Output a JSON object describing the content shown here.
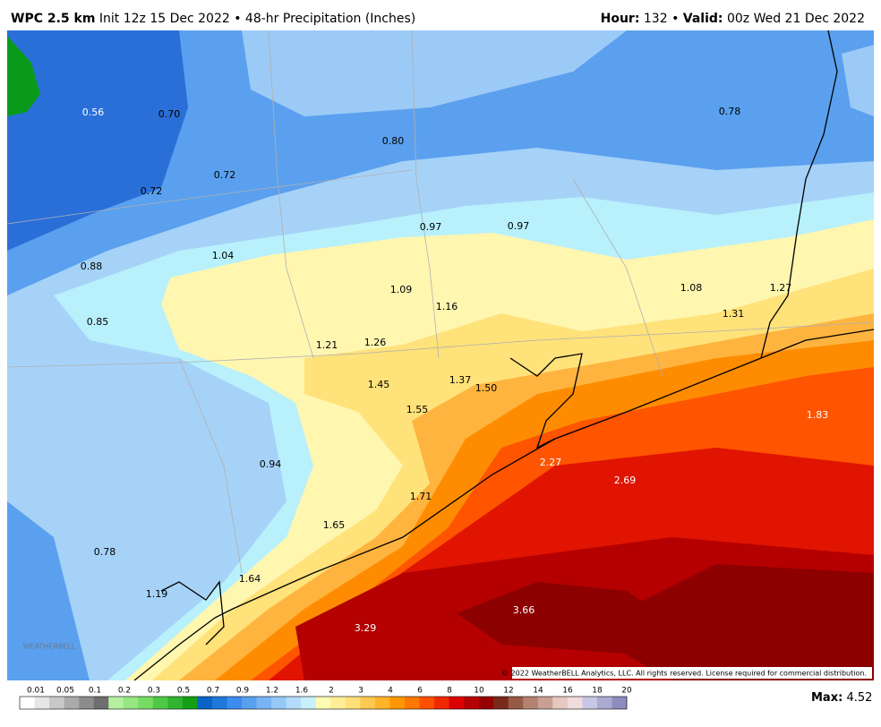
{
  "header": {
    "model": "WPC 2.5 km",
    "description": "Init 12z 15 Dec 2022 • 48-hr Precipitation (Inches)",
    "hour_label": "Hour:",
    "hour": "132",
    "separator": "•",
    "valid_label": "Valid:",
    "valid": "00z Wed 21 Dec 2022"
  },
  "labels": [
    "0.56",
    "0.70",
    "0.80",
    "0.78",
    "0.72",
    "0.72",
    "0.97",
    "0.97",
    "1.04",
    "0.88",
    "1.09",
    "1.16",
    "1.08",
    "1.27",
    "1.31",
    "0.85",
    "1.21",
    "1.26",
    "1.45",
    "1.37",
    "1.50",
    "1.55",
    "1.83",
    "2.27",
    "2.69",
    "0.94",
    "1.71",
    "1.65",
    "0.78",
    "1.64",
    "1.19",
    "3.66",
    "3.29"
  ],
  "copyright": "© 2022 WeatherBELL Analytics, LLC. All rights reserved. License required for commercial distribution.",
  "logo": "WEATHERBELL",
  "legend": {
    "ticks": [
      "0.01",
      "0.05",
      "0.1",
      "0.2",
      "0.3",
      "0.5",
      "0.7",
      "0.9",
      "1.2",
      "1.6",
      "2",
      "3",
      "4",
      "6",
      "8",
      "10",
      "12",
      "14",
      "16",
      "18",
      "20"
    ]
  },
  "max": {
    "label": "Max:",
    "value": "4.52"
  }
}
